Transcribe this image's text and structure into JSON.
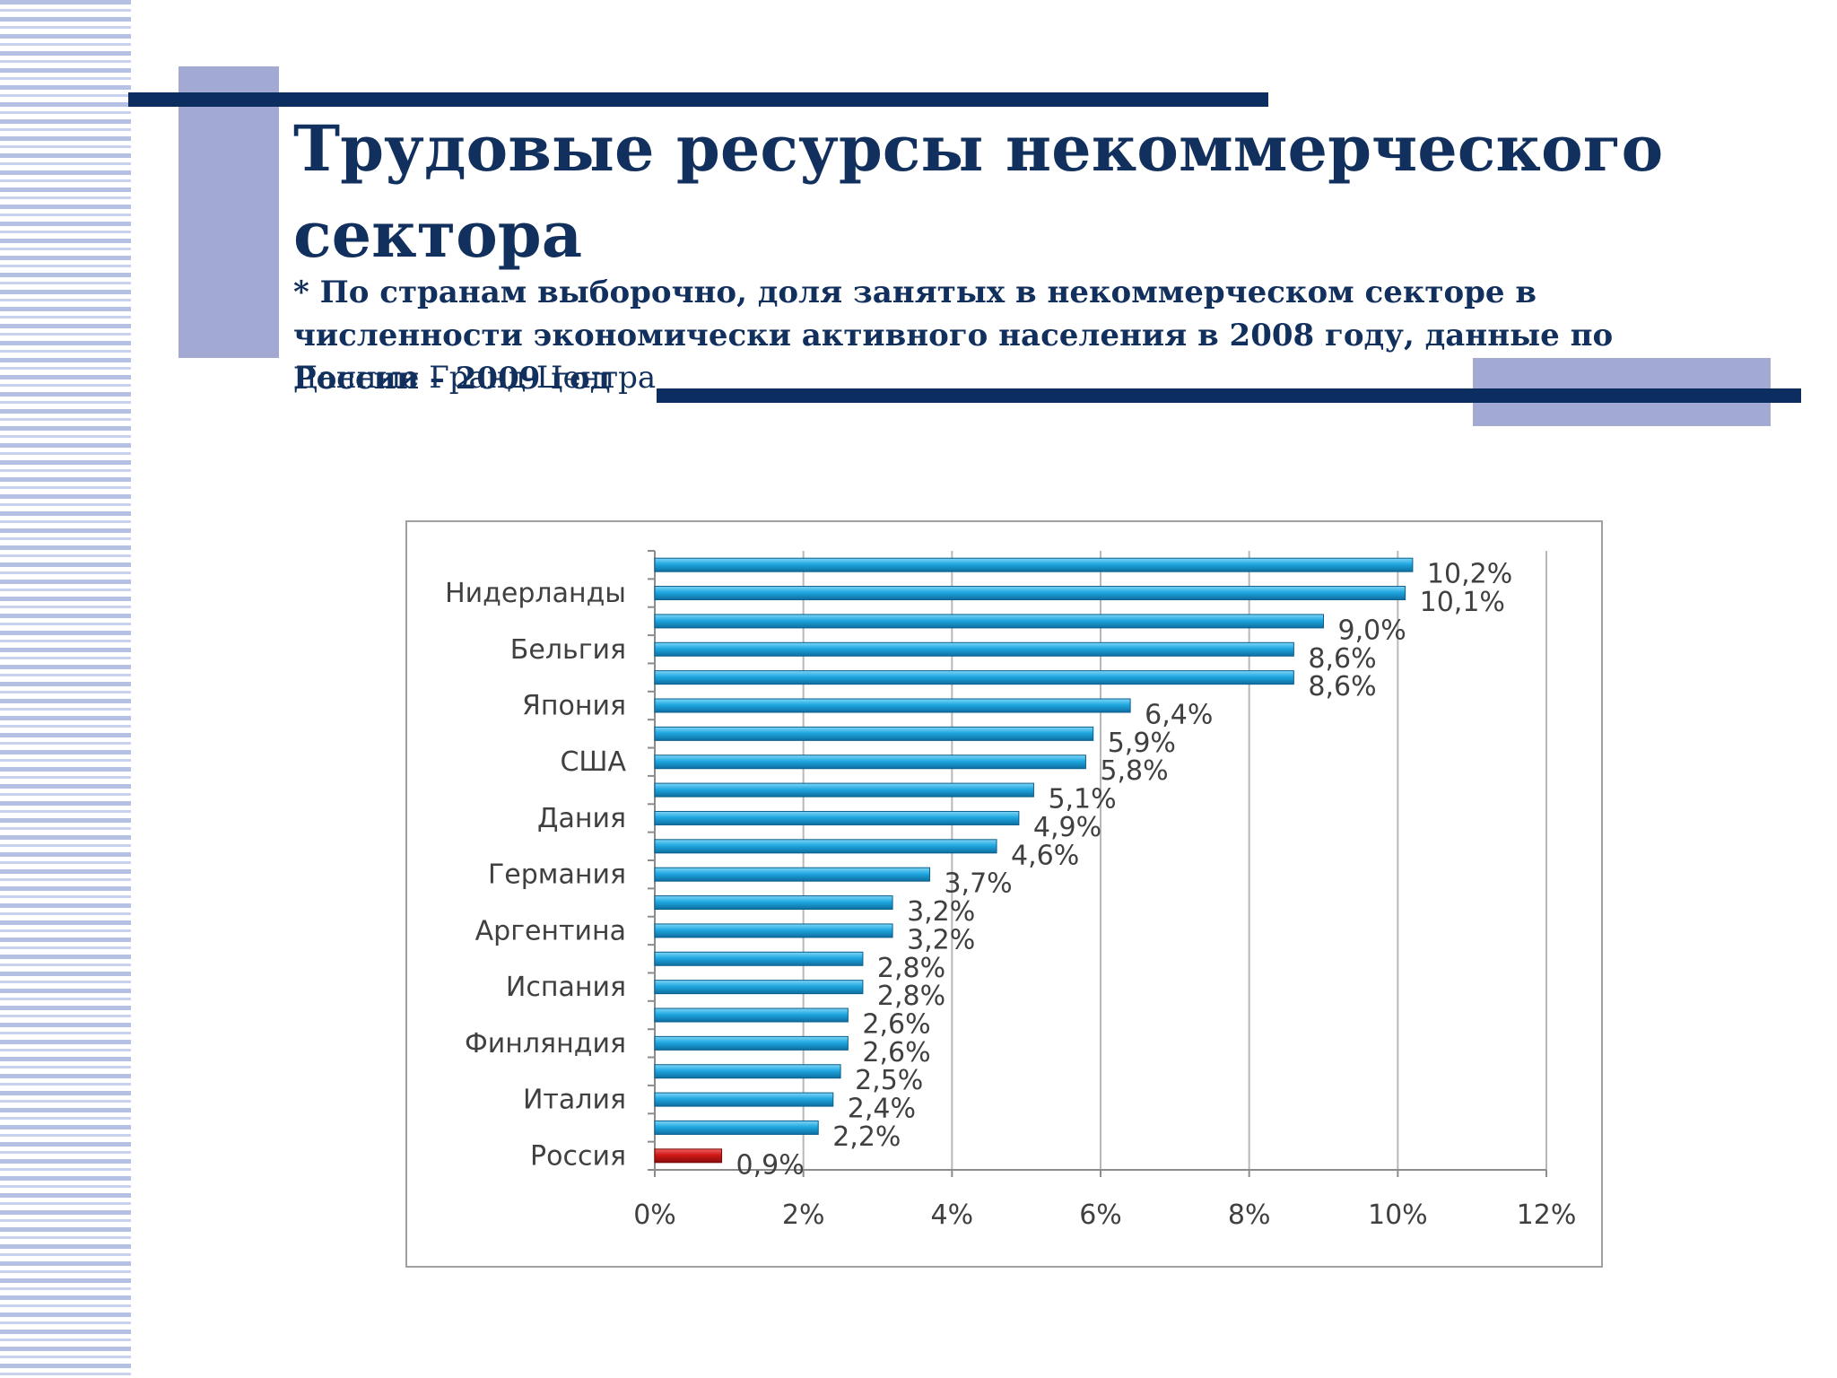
{
  "slide": {
    "title": "Трудовые ресурсы некоммерческого сектора",
    "subtitle": "* По странам выборочно, доля занятых в некоммерческом секторе в численности экономически активного населения в 2008 году, данные по России – 2009 год",
    "source": "Данные Гранд-Центра"
  },
  "colors": {
    "title": "#12305e",
    "bar": "#1fa7e0",
    "bar_highlight": "#d01818",
    "decor_bar": "#0c2d5f",
    "decor_block": "#a2aad4"
  },
  "chart_data": {
    "type": "bar",
    "orientation": "horizontal",
    "bars": [
      {
        "value": 10.2,
        "label": "10,2%",
        "category": ""
      },
      {
        "value": 10.1,
        "label": "10,1%",
        "category": "Нидерланды"
      },
      {
        "value": 9.0,
        "label": "9,0%",
        "category": ""
      },
      {
        "value": 8.6,
        "label": "8,6%",
        "category": "Бельгия"
      },
      {
        "value": 8.6,
        "label": "8,6%",
        "category": ""
      },
      {
        "value": 6.4,
        "label": "6,4%",
        "category": "Япония"
      },
      {
        "value": 5.9,
        "label": "5,9%",
        "category": ""
      },
      {
        "value": 5.8,
        "label": "5,8%",
        "category": "США"
      },
      {
        "value": 5.1,
        "label": "5,1%",
        "category": ""
      },
      {
        "value": 4.9,
        "label": "4,9%",
        "category": "Дания"
      },
      {
        "value": 4.6,
        "label": "4,6%",
        "category": ""
      },
      {
        "value": 3.7,
        "label": "3,7%",
        "category": "Германия"
      },
      {
        "value": 3.2,
        "label": "3,2%",
        "category": ""
      },
      {
        "value": 3.2,
        "label": "3,2%",
        "category": "Аргентина"
      },
      {
        "value": 2.8,
        "label": "2,8%",
        "category": ""
      },
      {
        "value": 2.8,
        "label": "2,8%",
        "category": "Испания"
      },
      {
        "value": 2.6,
        "label": "2,6%",
        "category": ""
      },
      {
        "value": 2.6,
        "label": "2,6%",
        "category": "Финляндия"
      },
      {
        "value": 2.5,
        "label": "2,5%",
        "category": ""
      },
      {
        "value": 2.4,
        "label": "2,4%",
        "category": "Италия"
      },
      {
        "value": 2.2,
        "label": "2,2%",
        "category": ""
      },
      {
        "value": 0.9,
        "label": "0,9%",
        "category": "Россия",
        "highlight": true
      }
    ],
    "x_ticks": [
      "0%",
      "2%",
      "4%",
      "6%",
      "8%",
      "10%",
      "12%"
    ],
    "xlim": [
      0,
      12
    ],
    "x_unit": "%",
    "grid": true,
    "legend": "none"
  }
}
